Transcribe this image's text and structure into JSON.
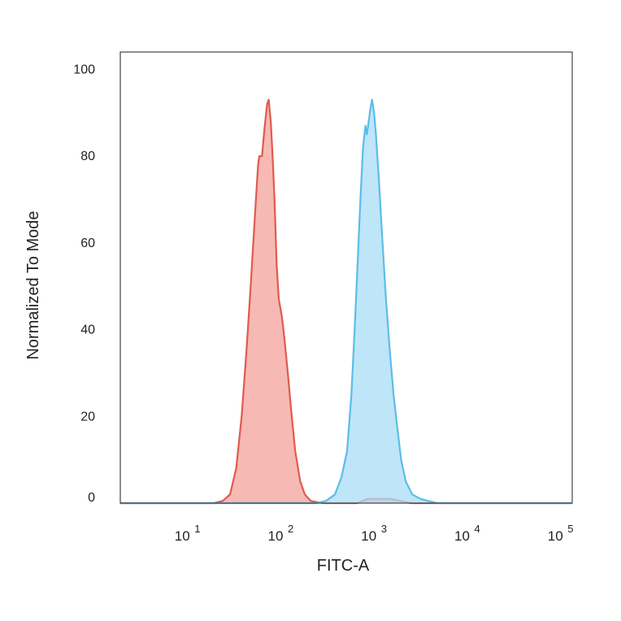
{
  "chart_data": {
    "type": "area",
    "xlabel": "FITC-A",
    "ylabel": "Normalized To Mode",
    "x_scale": "log",
    "xlim": [
      2,
      140000
    ],
    "ylim": [
      0,
      104
    ],
    "x_ticks": [
      {
        "value": 10,
        "base": "10",
        "exp": "1"
      },
      {
        "value": 100,
        "base": "10",
        "exp": "2"
      },
      {
        "value": 1000,
        "base": "10",
        "exp": "3"
      },
      {
        "value": 10000,
        "base": "10",
        "exp": "4"
      },
      {
        "value": 100000,
        "base": "10",
        "exp": "5"
      }
    ],
    "y_ticks": [
      0,
      20,
      40,
      60,
      80,
      100
    ],
    "grid": false,
    "legend": "none",
    "series": [
      {
        "color": "#e05a4e",
        "fill": "#f4a29b",
        "points": [
          [
            2,
            0
          ],
          [
            20,
            0
          ],
          [
            25,
            0.5
          ],
          [
            30,
            2
          ],
          [
            35,
            8
          ],
          [
            40,
            20
          ],
          [
            45,
            35
          ],
          [
            50,
            50
          ],
          [
            55,
            65
          ],
          [
            60,
            78
          ],
          [
            62,
            80
          ],
          [
            66,
            80
          ],
          [
            70,
            86
          ],
          [
            75,
            92
          ],
          [
            78,
            93
          ],
          [
            82,
            88
          ],
          [
            86,
            80
          ],
          [
            90,
            70
          ],
          [
            95,
            55
          ],
          [
            100,
            47
          ],
          [
            108,
            43
          ],
          [
            115,
            38
          ],
          [
            125,
            30
          ],
          [
            135,
            22
          ],
          [
            150,
            12
          ],
          [
            170,
            5
          ],
          [
            190,
            2
          ],
          [
            220,
            0.5
          ],
          [
            300,
            0
          ],
          [
            700,
            0
          ],
          [
            900,
            1
          ],
          [
            1200,
            1
          ],
          [
            1600,
            1
          ],
          [
            2000,
            0.5
          ],
          [
            2600,
            0
          ],
          [
            140000,
            0
          ]
        ]
      },
      {
        "color": "#5bbde8",
        "fill": "#a9dcf6",
        "points": [
          [
            2,
            0
          ],
          [
            250,
            0
          ],
          [
            320,
            0.5
          ],
          [
            400,
            2
          ],
          [
            470,
            6
          ],
          [
            540,
            12
          ],
          [
            600,
            25
          ],
          [
            650,
            40
          ],
          [
            700,
            55
          ],
          [
            750,
            70
          ],
          [
            800,
            82
          ],
          [
            850,
            87
          ],
          [
            880,
            85
          ],
          [
            920,
            88
          ],
          [
            960,
            91
          ],
          [
            1000,
            93
          ],
          [
            1050,
            90
          ],
          [
            1100,
            85
          ],
          [
            1180,
            75
          ],
          [
            1280,
            62
          ],
          [
            1400,
            48
          ],
          [
            1550,
            35
          ],
          [
            1700,
            25
          ],
          [
            1850,
            18
          ],
          [
            2050,
            10
          ],
          [
            2300,
            5
          ],
          [
            2700,
            2
          ],
          [
            3300,
            1
          ],
          [
            4000,
            0.5
          ],
          [
            5000,
            0
          ],
          [
            140000,
            0
          ]
        ]
      }
    ]
  }
}
